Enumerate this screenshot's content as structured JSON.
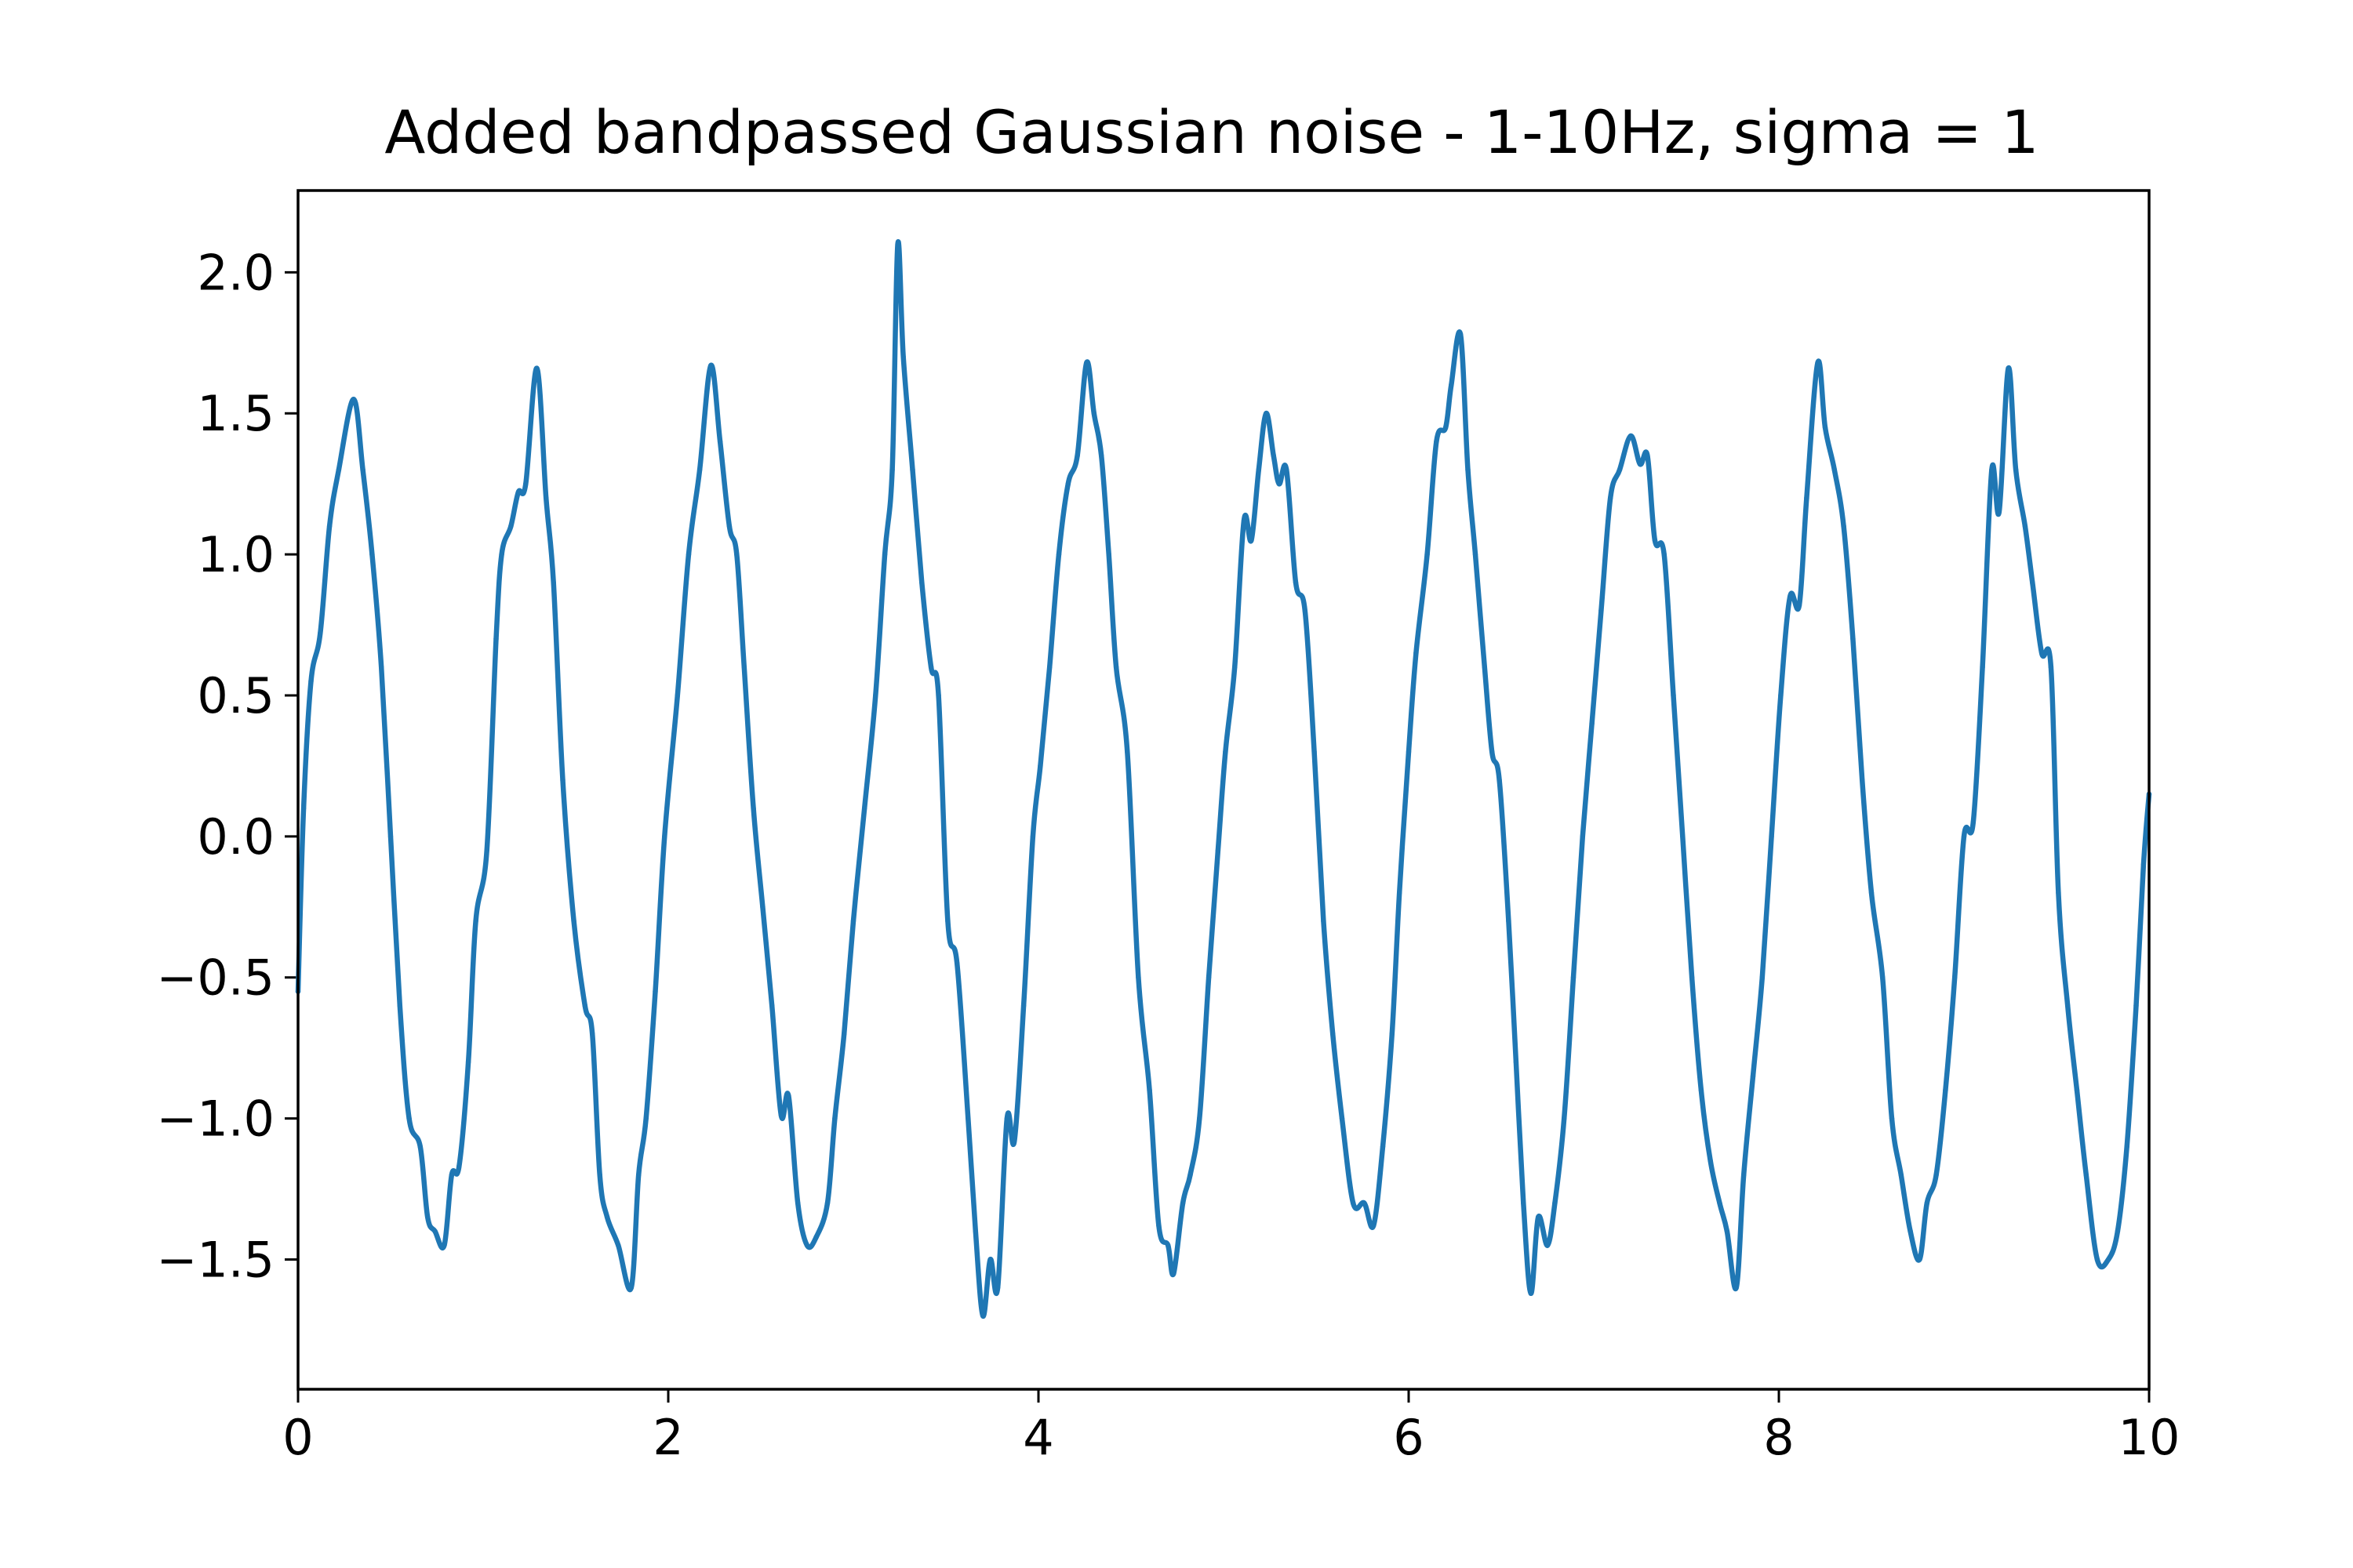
{
  "chart_data": {
    "type": "line",
    "title": "Added bandpassed Gaussian noise - 1-10Hz, sigma = 1",
    "xlabel": "",
    "ylabel": "",
    "xlim": [
      0,
      10
    ],
    "ylim": [
      -1.96,
      2.29
    ],
    "grid": false,
    "x_ticks": [
      0,
      2,
      4,
      6,
      8,
      10
    ],
    "x_tick_labels": [
      "0",
      "2",
      "4",
      "6",
      "8",
      "10"
    ],
    "y_ticks": [
      2.0,
      1.5,
      1.0,
      0.5,
      0.0,
      -0.5,
      -1.0,
      -1.5
    ],
    "y_tick_labels": [
      "2.0",
      "1.5",
      "1.0",
      "0.5",
      "0.0",
      "−0.5",
      "−1.0",
      "−1.5"
    ],
    "series": [
      {
        "color": "#1f77b4",
        "points": [
          [
            0.0,
            -0.55
          ],
          [
            0.03,
            0.1
          ],
          [
            0.07,
            0.55
          ],
          [
            0.12,
            0.72
          ],
          [
            0.17,
            1.1
          ],
          [
            0.22,
            1.3
          ],
          [
            0.3,
            1.55
          ],
          [
            0.35,
            1.3
          ],
          [
            0.4,
            1.0
          ],
          [
            0.45,
            0.6
          ],
          [
            0.5,
            0.0
          ],
          [
            0.55,
            -0.6
          ],
          [
            0.6,
            -1.0
          ],
          [
            0.66,
            -1.1
          ],
          [
            0.7,
            -1.35
          ],
          [
            0.74,
            -1.4
          ],
          [
            0.79,
            -1.45
          ],
          [
            0.83,
            -1.2
          ],
          [
            0.87,
            -1.17
          ],
          [
            0.92,
            -0.8
          ],
          [
            0.96,
            -0.3
          ],
          [
            1.02,
            -0.05
          ],
          [
            1.07,
            0.7
          ],
          [
            1.1,
            1.0
          ],
          [
            1.15,
            1.1
          ],
          [
            1.19,
            1.22
          ],
          [
            1.23,
            1.25
          ],
          [
            1.29,
            1.66
          ],
          [
            1.34,
            1.2
          ],
          [
            1.38,
            0.9
          ],
          [
            1.43,
            0.2
          ],
          [
            1.49,
            -0.3
          ],
          [
            1.55,
            -0.6
          ],
          [
            1.59,
            -0.7
          ],
          [
            1.63,
            -1.2
          ],
          [
            1.67,
            -1.35
          ],
          [
            1.73,
            -1.45
          ],
          [
            1.8,
            -1.6
          ],
          [
            1.84,
            -1.2
          ],
          [
            1.88,
            -1.0
          ],
          [
            1.93,
            -0.55
          ],
          [
            1.98,
            0.0
          ],
          [
            2.05,
            0.5
          ],
          [
            2.11,
            1.0
          ],
          [
            2.17,
            1.3
          ],
          [
            2.23,
            1.67
          ],
          [
            2.28,
            1.4
          ],
          [
            2.33,
            1.1
          ],
          [
            2.37,
            1.0
          ],
          [
            2.41,
            0.6
          ],
          [
            2.46,
            0.1
          ],
          [
            2.51,
            -0.25
          ],
          [
            2.56,
            -0.6
          ],
          [
            2.61,
            -0.99
          ],
          [
            2.65,
            -0.92
          ],
          [
            2.7,
            -1.3
          ],
          [
            2.75,
            -1.45
          ],
          [
            2.8,
            -1.42
          ],
          [
            2.86,
            -1.3
          ],
          [
            2.9,
            -1.0
          ],
          [
            2.95,
            -0.7
          ],
          [
            3.0,
            -0.3
          ],
          [
            3.06,
            0.1
          ],
          [
            3.12,
            0.5
          ],
          [
            3.17,
            1.0
          ],
          [
            3.21,
            1.3
          ],
          [
            3.24,
            2.1
          ],
          [
            3.27,
            1.7
          ],
          [
            3.32,
            1.3
          ],
          [
            3.37,
            0.9
          ],
          [
            3.42,
            0.6
          ],
          [
            3.46,
            0.5
          ],
          [
            3.51,
            -0.3
          ],
          [
            3.56,
            -0.45
          ],
          [
            3.62,
            -1.0
          ],
          [
            3.66,
            -1.4
          ],
          [
            3.7,
            -1.7
          ],
          [
            3.74,
            -1.5
          ],
          [
            3.78,
            -1.6
          ],
          [
            3.83,
            -1.0
          ],
          [
            3.87,
            -1.08
          ],
          [
            3.92,
            -0.6
          ],
          [
            3.97,
            0.0
          ],
          [
            4.01,
            0.25
          ],
          [
            4.06,
            0.6
          ],
          [
            4.11,
            1.0
          ],
          [
            4.16,
            1.25
          ],
          [
            4.21,
            1.35
          ],
          [
            4.26,
            1.68
          ],
          [
            4.3,
            1.5
          ],
          [
            4.34,
            1.35
          ],
          [
            4.38,
            1.0
          ],
          [
            4.42,
            0.6
          ],
          [
            4.48,
            0.3
          ],
          [
            4.54,
            -0.5
          ],
          [
            4.6,
            -0.9
          ],
          [
            4.65,
            -1.38
          ],
          [
            4.7,
            -1.45
          ],
          [
            4.73,
            -1.55
          ],
          [
            4.78,
            -1.3
          ],
          [
            4.82,
            -1.2
          ],
          [
            4.87,
            -1.0
          ],
          [
            4.92,
            -0.5
          ],
          [
            4.97,
            -0.05
          ],
          [
            5.01,
            0.3
          ],
          [
            5.06,
            0.6
          ],
          [
            5.11,
            1.12
          ],
          [
            5.15,
            1.05
          ],
          [
            5.19,
            1.3
          ],
          [
            5.23,
            1.5
          ],
          [
            5.27,
            1.35
          ],
          [
            5.3,
            1.25
          ],
          [
            5.34,
            1.3
          ],
          [
            5.39,
            0.9
          ],
          [
            5.44,
            0.8
          ],
          [
            5.49,
            0.3
          ],
          [
            5.54,
            -0.3
          ],
          [
            5.59,
            -0.7
          ],
          [
            5.64,
            -1.0
          ],
          [
            5.7,
            -1.3
          ],
          [
            5.76,
            -1.3
          ],
          [
            5.81,
            -1.38
          ],
          [
            5.86,
            -1.1
          ],
          [
            5.91,
            -0.7
          ],
          [
            5.95,
            -0.2
          ],
          [
            6.0,
            0.3
          ],
          [
            6.04,
            0.65
          ],
          [
            6.1,
            1.0
          ],
          [
            6.15,
            1.4
          ],
          [
            6.2,
            1.45
          ],
          [
            6.23,
            1.6
          ],
          [
            6.28,
            1.78
          ],
          [
            6.32,
            1.3
          ],
          [
            6.36,
            1.0
          ],
          [
            6.41,
            0.6
          ],
          [
            6.45,
            0.3
          ],
          [
            6.49,
            0.2
          ],
          [
            6.54,
            -0.3
          ],
          [
            6.58,
            -0.8
          ],
          [
            6.62,
            -1.3
          ],
          [
            6.66,
            -1.62
          ],
          [
            6.7,
            -1.35
          ],
          [
            6.75,
            -1.45
          ],
          [
            6.79,
            -1.3
          ],
          [
            6.84,
            -1.0
          ],
          [
            6.89,
            -0.5
          ],
          [
            6.94,
            0.0
          ],
          [
            6.99,
            0.4
          ],
          [
            7.04,
            0.8
          ],
          [
            7.09,
            1.2
          ],
          [
            7.14,
            1.3
          ],
          [
            7.2,
            1.42
          ],
          [
            7.25,
            1.32
          ],
          [
            7.29,
            1.35
          ],
          [
            7.33,
            1.05
          ],
          [
            7.38,
            1.0
          ],
          [
            7.43,
            0.5
          ],
          [
            7.48,
            0.0
          ],
          [
            7.53,
            -0.5
          ],
          [
            7.58,
            -0.9
          ],
          [
            7.63,
            -1.15
          ],
          [
            7.68,
            -1.3
          ],
          [
            7.72,
            -1.4
          ],
          [
            7.77,
            -1.6
          ],
          [
            7.81,
            -1.2
          ],
          [
            7.86,
            -0.85
          ],
          [
            7.91,
            -0.5
          ],
          [
            7.96,
            0.0
          ],
          [
            8.01,
            0.5
          ],
          [
            8.06,
            0.85
          ],
          [
            8.11,
            0.82
          ],
          [
            8.15,
            1.2
          ],
          [
            8.21,
            1.68
          ],
          [
            8.25,
            1.45
          ],
          [
            8.3,
            1.3
          ],
          [
            8.35,
            1.1
          ],
          [
            8.4,
            0.7
          ],
          [
            8.45,
            0.2
          ],
          [
            8.5,
            -0.2
          ],
          [
            8.56,
            -0.5
          ],
          [
            8.61,
            -1.0
          ],
          [
            8.66,
            -1.2
          ],
          [
            8.71,
            -1.4
          ],
          [
            8.76,
            -1.5
          ],
          [
            8.8,
            -1.3
          ],
          [
            8.85,
            -1.2
          ],
          [
            8.9,
            -0.9
          ],
          [
            8.95,
            -0.5
          ],
          [
            9.0,
            0.0
          ],
          [
            9.05,
            0.05
          ],
          [
            9.1,
            0.6
          ],
          [
            9.15,
            1.3
          ],
          [
            9.19,
            1.15
          ],
          [
            9.24,
            1.66
          ],
          [
            9.28,
            1.3
          ],
          [
            9.33,
            1.1
          ],
          [
            9.37,
            0.9
          ],
          [
            9.42,
            0.65
          ],
          [
            9.47,
            0.6
          ],
          [
            9.51,
            -0.2
          ],
          [
            9.56,
            -0.6
          ],
          [
            9.61,
            -0.9
          ],
          [
            9.66,
            -1.2
          ],
          [
            9.72,
            -1.5
          ],
          [
            9.78,
            -1.5
          ],
          [
            9.83,
            -1.4
          ],
          [
            9.88,
            -1.1
          ],
          [
            9.93,
            -0.6
          ],
          [
            9.97,
            -0.1
          ],
          [
            10.0,
            0.15
          ]
        ]
      }
    ]
  }
}
